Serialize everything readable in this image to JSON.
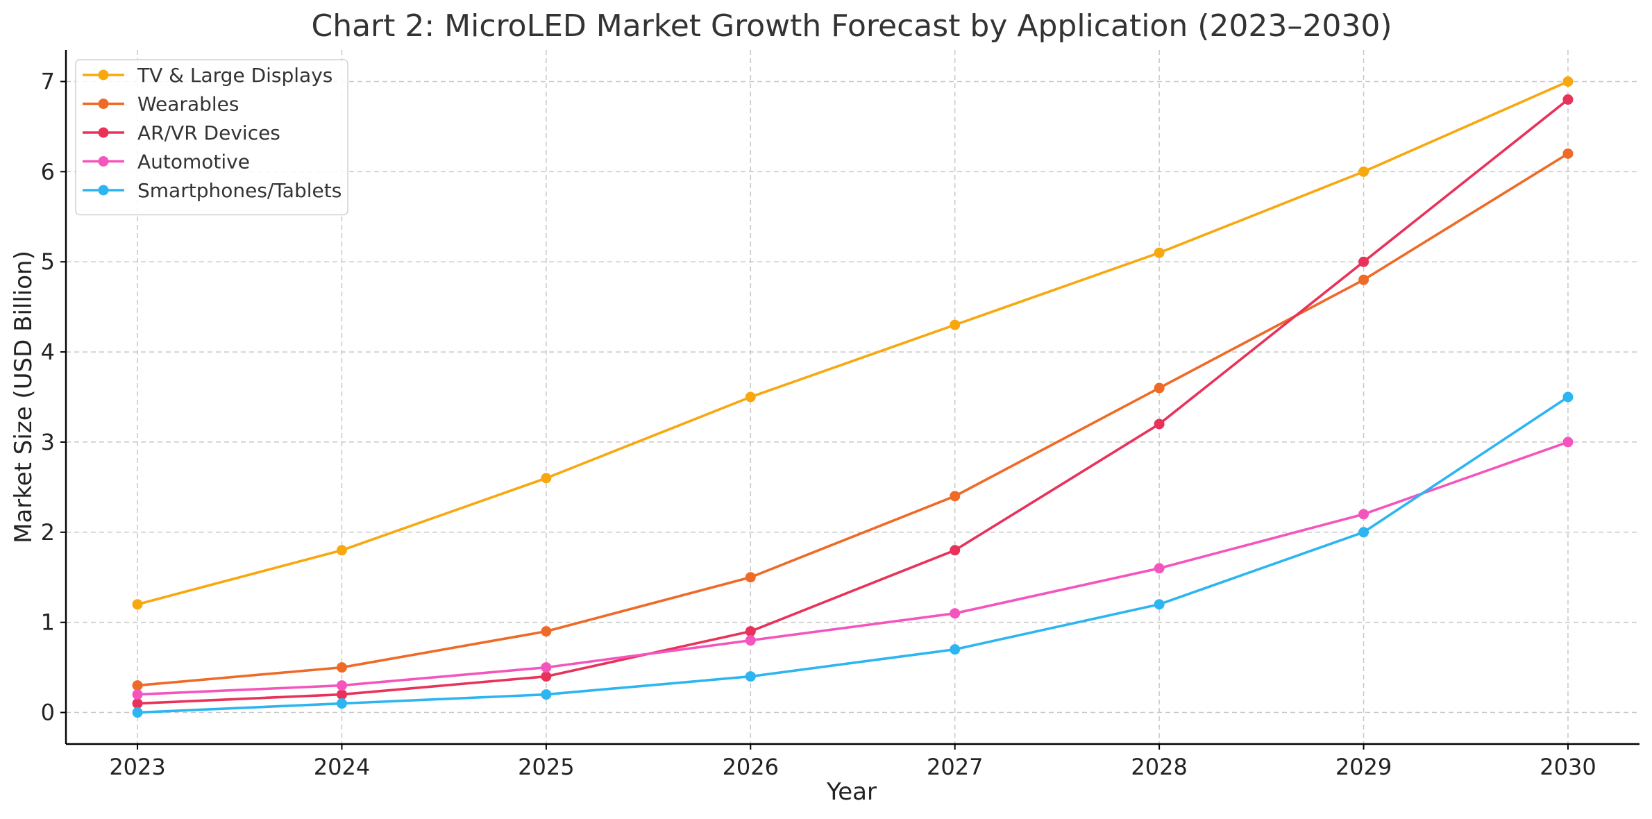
{
  "chart_data": {
    "type": "line",
    "title": "Chart 2: MicroLED Market Growth Forecast by Application (2023–2030)",
    "xlabel": "Year",
    "ylabel": "Market Size (USD Billion)",
    "x": [
      "2023",
      "2024",
      "2025",
      "2026",
      "2027",
      "2028",
      "2029",
      "2030"
    ],
    "xlim": [
      2022.65,
      2030.35
    ],
    "ylim": [
      -0.35,
      7.35
    ],
    "yticks": [
      "0",
      "1",
      "2",
      "3",
      "4",
      "5",
      "6",
      "7"
    ],
    "grid": true,
    "legend_position": "top-left",
    "series": [
      {
        "name": "TV & Large Displays",
        "color": "#f7a80f",
        "values": [
          1.2,
          1.8,
          2.6,
          3.5,
          4.3,
          5.1,
          6.0,
          7.0
        ]
      },
      {
        "name": "Wearables",
        "color": "#ee6a26",
        "values": [
          0.3,
          0.5,
          0.9,
          1.5,
          2.4,
          3.6,
          4.8,
          6.2
        ]
      },
      {
        "name": "AR/VR Devices",
        "color": "#e8325a",
        "values": [
          0.1,
          0.2,
          0.4,
          0.9,
          1.8,
          3.2,
          5.0,
          6.8
        ]
      },
      {
        "name": "Automotive",
        "color": "#f455bd",
        "values": [
          0.2,
          0.3,
          0.5,
          0.8,
          1.1,
          1.6,
          2.2,
          3.0
        ]
      },
      {
        "name": "Smartphones/Tablets",
        "color": "#2cb5f0",
        "values": [
          0.0,
          0.1,
          0.2,
          0.4,
          0.7,
          1.2,
          2.0,
          3.5
        ]
      }
    ]
  }
}
